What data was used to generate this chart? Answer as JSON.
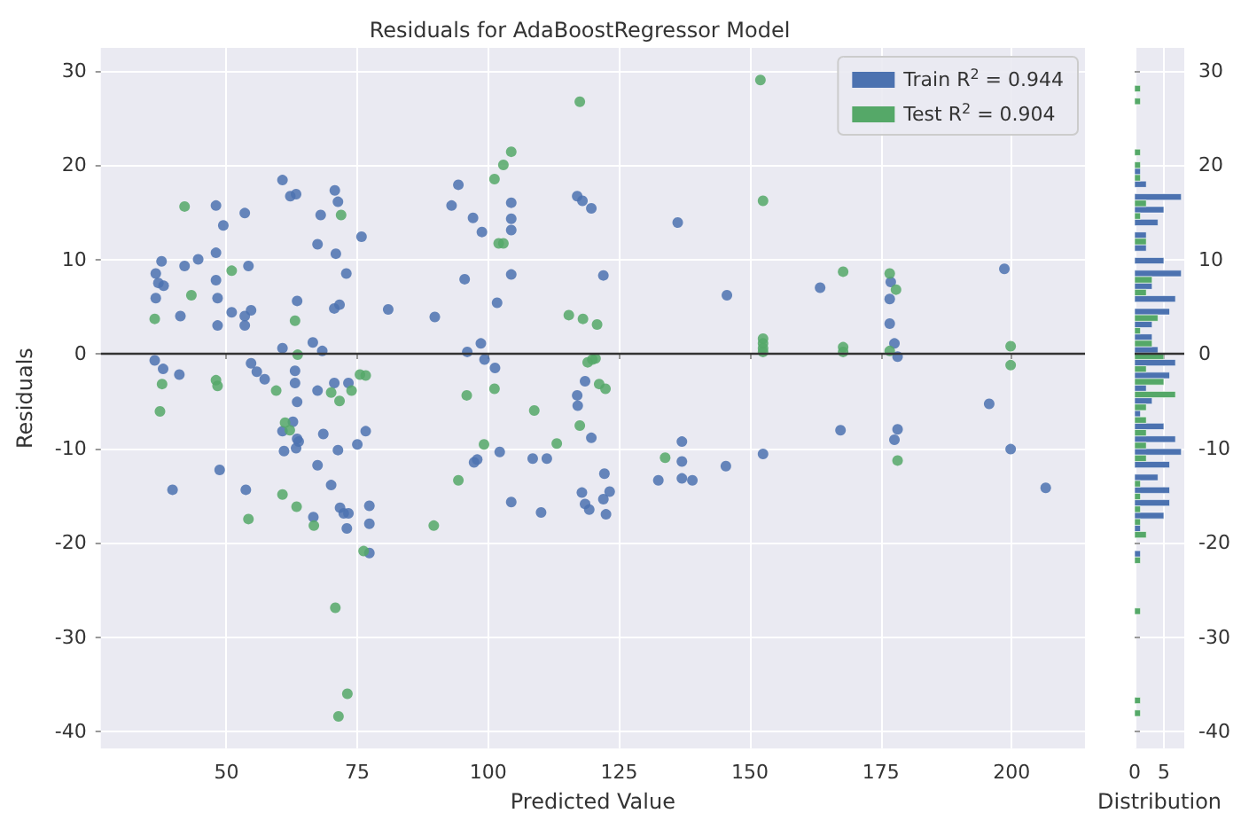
{
  "chart_data": [
    {
      "type": "scatter",
      "title": "Residuals for AdaBoostRegressor Model",
      "xlabel": "Predicted Value",
      "ylabel": "Residuals",
      "xlim": [
        26,
        214
      ],
      "xticks": [
        50,
        75,
        100,
        125,
        150,
        175,
        200
      ],
      "ylim": [
        -41.8,
        32.4
      ],
      "yticks": [
        -40,
        -30,
        -20,
        -10,
        0,
        10,
        20,
        30
      ],
      "grid": true,
      "legend": "top right",
      "marker": "circle",
      "ref_lines": [
        {
          "axis": "y",
          "value": 0,
          "color": "#333333"
        }
      ],
      "series": [
        {
          "name": "Train R$^{2}$ = 0.944",
          "color": "#4c72b0",
          "x": [
            36.5,
            37.6,
            37,
            38,
            36.5,
            41.2,
            42,
            44.6,
            48,
            48,
            49.4,
            48,
            48.3,
            48.3,
            51,
            53.5,
            54.2,
            53.5,
            54.7,
            53.5,
            60.7,
            62.2,
            63.3,
            63.5,
            60.7,
            68,
            67.4,
            70.7,
            71.3,
            70.9,
            72.9,
            70.6,
            71.6,
            75.8,
            80.9,
            66.5,
            68.3,
            36.3,
            37.9,
            41,
            54.7,
            55.8,
            57.3,
            63.1,
            63.1,
            63.5,
            67.4,
            70.6,
            73.3,
            60.7,
            61,
            62.7,
            63.5,
            63.3,
            63.8,
            68.5,
            67.4,
            71.3,
            70,
            75,
            76.6,
            48.7,
            39.7,
            53.7,
            66.6,
            71.7,
            72.4,
            73.3,
            73,
            77.3,
            77.3,
            77.3,
            89.8,
            94.3,
            93,
            97.1,
            98.8,
            95.5,
            101.7,
            104.4,
            104.4,
            104.4,
            104.4,
            98.6,
            96,
            99.3,
            101.3,
            102.2,
            97.3,
            97.9,
            104.4,
            108.5,
            111.2,
            110.1,
            117,
            118,
            119.7,
            122,
            118.5,
            117,
            117.1,
            119.7,
            122.2,
            117.9,
            118.5,
            119.3,
            122,
            123.2,
            122.5,
            132.5,
            137,
            137,
            137,
            139,
            136.2,
            145.6,
            145.4,
            152.5,
            163.4,
            167.3,
            176.9,
            176.7,
            176.7,
            177.6,
            178.2,
            178.2,
            177.6,
            198.6,
            195.7,
            199.8,
            206.5
          ],
          "values": [
            8.5,
            9.8,
            7.5,
            7.2,
            5.9,
            4.0,
            9.3,
            10,
            10.7,
            15.7,
            13.6,
            7.8,
            5.9,
            3,
            4.4,
            14.9,
            9.3,
            4,
            4.6,
            3,
            18.4,
            16.7,
            16.9,
            5.6,
            0.6,
            14.7,
            11.6,
            17.3,
            16.1,
            10.6,
            8.5,
            4.8,
            5.2,
            12.4,
            4.7,
            1.2,
            0.3,
            -0.7,
            -1.6,
            -2.2,
            -1,
            -1.9,
            -2.7,
            -1.8,
            -3.1,
            -5.1,
            -3.9,
            -3.1,
            -3.1,
            -8.2,
            -10.3,
            -7.2,
            -9,
            -10,
            -9.3,
            -8.5,
            -11.8,
            -10.2,
            -13.9,
            -9.6,
            -8.2,
            -12.3,
            -14.4,
            -14.4,
            -17.3,
            -16.3,
            -16.9,
            -16.9,
            -18.5,
            -16.1,
            -18,
            -21.1,
            3.9,
            17.9,
            15.7,
            14.4,
            12.9,
            7.9,
            5.4,
            16,
            14.3,
            13.1,
            8.4,
            1.1,
            0.2,
            -0.6,
            -1.5,
            -10.4,
            -11.5,
            -11.2,
            -15.7,
            -11.1,
            -11.1,
            -16.8,
            16.7,
            16.2,
            15.4,
            8.3,
            -2.9,
            -4.4,
            -5.5,
            -8.9,
            -12.7,
            -14.7,
            -15.9,
            -16.5,
            -15.4,
            -14.6,
            -17,
            -13.4,
            -9.3,
            -11.4,
            -13.2,
            -13.4,
            13.9,
            6.2,
            -11.9,
            -10.6,
            7,
            -8.1,
            7.6,
            5.8,
            3.2,
            1.1,
            -0.3,
            -8,
            -9.1,
            9,
            -5.3,
            -10.1,
            -14.2
          ]
        },
        {
          "name": "Test R$^{2}$ = 0.904",
          "color": "#55a868",
          "x": [
            42,
            71.9,
            43.3,
            51,
            36.3,
            63.1,
            63.6,
            37.7,
            37.3,
            48,
            48.3,
            59.5,
            70,
            71.6,
            73.9,
            75.5,
            76.6,
            61.2,
            62.1,
            60.7,
            63.4,
            54.2,
            66.7,
            76.2,
            70.8,
            73.1,
            71.4,
            117.5,
            104.4,
            102.9,
            101.2,
            102,
            102.9,
            115.4,
            118.1,
            120.8,
            119,
            119.9,
            120.5,
            121.2,
            122.4,
            95.9,
            101.2,
            108.8,
            117.5,
            99.2,
            113.1,
            94.3,
            89.6,
            133.8,
            152,
            152.5,
            152.5,
            152.5,
            152.5,
            152.5,
            167.8,
            167.8,
            167.8,
            176.7,
            177.9,
            176.7,
            178.2,
            199.8,
            199.8
          ],
          "values": [
            15.6,
            14.7,
            6.2,
            8.8,
            3.7,
            3.5,
            -0.1,
            -3.2,
            -6.1,
            -2.8,
            -3.4,
            -3.9,
            -4.1,
            -5,
            -3.9,
            -2.2,
            -2.3,
            -7.3,
            -8.1,
            -14.9,
            -16.2,
            -17.5,
            -18.2,
            -20.9,
            -26.9,
            -36,
            -38.4,
            26.7,
            21.4,
            20,
            18.5,
            11.7,
            11.7,
            4.1,
            3.7,
            3.1,
            -0.9,
            -0.6,
            -0.5,
            -3.2,
            -3.7,
            -4.4,
            -3.7,
            -6,
            -7.6,
            -9.6,
            -9.5,
            -13.4,
            -18.2,
            -11,
            29,
            16.2,
            1.6,
            1.1,
            0.6,
            0.2,
            8.7,
            0.7,
            0.2,
            8.5,
            6.8,
            0.3,
            -11.3,
            0.8,
            -1.2
          ]
        }
      ]
    },
    {
      "type": "histogram",
      "orientation": "horizontal",
      "xlabel": "Distribution",
      "xlim": [
        0,
        8.5
      ],
      "xticks": [
        0,
        5
      ],
      "ylim": [
        -41.8,
        32.4
      ],
      "yticks": [
        -40,
        -30,
        -20,
        -10,
        0,
        10,
        20,
        30
      ],
      "grid": true,
      "ref_lines": [
        {
          "axis": "y",
          "value": 0,
          "color": "#333333"
        }
      ],
      "bins": [
        -38.4,
        -37.05,
        -35.7,
        -34.35,
        -33.0,
        -31.65,
        -30.3,
        -28.95,
        -27.6,
        -26.25,
        -24.9,
        -23.55,
        -22.2,
        -20.85,
        -19.5,
        -18.15,
        -16.8,
        -15.45,
        -14.1,
        -12.75,
        -11.4,
        -10.05,
        -8.7,
        -7.35,
        -6.0,
        -4.65,
        -3.3,
        -1.95,
        -0.6,
        0.75,
        2.1,
        3.45,
        4.8,
        6.15,
        7.5,
        8.85,
        10.2,
        11.55,
        12.9,
        14.25,
        15.6,
        16.95,
        18.3,
        19.65,
        21.0,
        22.35,
        23.7,
        25.05,
        26.4,
        27.75,
        29.1
      ],
      "series": [
        {
          "color": "#4c72b0",
          "values": [
            0,
            0,
            0,
            0,
            0,
            0,
            0,
            0,
            0,
            0,
            0,
            0,
            1,
            0,
            1,
            5,
            6,
            6,
            4,
            6,
            8,
            7,
            5,
            1,
            3,
            2,
            6,
            7,
            4,
            3,
            3,
            6,
            7,
            3,
            8,
            5,
            2,
            2,
            4,
            5,
            8,
            2,
            1,
            0,
            0,
            0,
            0,
            0,
            0,
            0
          ]
        },
        {
          "color": "#55a868",
          "values": [
            1,
            1,
            0,
            0,
            0,
            0,
            0,
            0,
            1,
            0,
            0,
            0,
            1,
            0,
            2,
            1,
            1,
            1,
            1,
            0,
            2,
            2,
            2,
            2,
            2,
            7,
            5,
            2,
            5,
            3,
            1,
            4,
            0,
            2,
            3,
            0,
            0,
            2,
            0,
            1,
            2,
            0,
            1,
            1,
            1,
            0,
            0,
            0,
            1,
            1
          ]
        }
      ]
    }
  ]
}
